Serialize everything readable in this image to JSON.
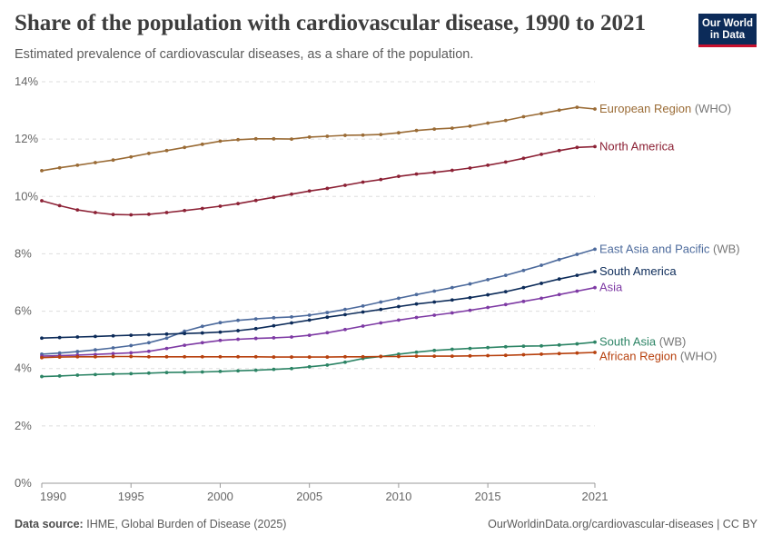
{
  "header": {
    "title": "Share of the population with cardiovascular disease, 1990 to 2021",
    "subtitle": "Estimated prevalence of cardiovascular diseases, as a share of the population.",
    "logo_line1": "Our World",
    "logo_line2": "in Data"
  },
  "footer": {
    "source_label": "Data source:",
    "source_text": "IHME, Global Burden of Disease (2025)",
    "url": "OurWorldinData.org/cardiovascular-diseases | CC BY"
  },
  "chart_data": {
    "type": "line",
    "title": "Share of the population with cardiovascular disease, 1990 to 2021",
    "xlabel": "",
    "ylabel": "",
    "xlim": [
      1990,
      2021
    ],
    "ylim": [
      0,
      14
    ],
    "grid": true,
    "legend": "end-of-line labels",
    "x_ticks": [
      1990,
      1995,
      2000,
      2005,
      2010,
      2015,
      2021
    ],
    "y_ticks": [
      {
        "value": 0,
        "label": "0%"
      },
      {
        "value": 2,
        "label": "2%"
      },
      {
        "value": 4,
        "label": "4%"
      },
      {
        "value": 6,
        "label": "6%"
      },
      {
        "value": 8,
        "label": "8%"
      },
      {
        "value": 10,
        "label": "10%"
      },
      {
        "value": 12,
        "label": "12%"
      },
      {
        "value": 14,
        "label": "14%"
      }
    ],
    "x": [
      1990,
      1991,
      1992,
      1993,
      1994,
      1995,
      1996,
      1997,
      1998,
      1999,
      2000,
      2001,
      2002,
      2003,
      2004,
      2005,
      2006,
      2007,
      2008,
      2009,
      2010,
      2011,
      2012,
      2013,
      2014,
      2015,
      2016,
      2017,
      2018,
      2019,
      2020,
      2021
    ],
    "series": [
      {
        "name": "European Region",
        "name_suffix": " (WHO)",
        "color": "#9a6b35",
        "values": [
          10.9,
          11.0,
          11.09,
          11.18,
          11.27,
          11.38,
          11.5,
          11.6,
          11.71,
          11.82,
          11.93,
          11.98,
          12.01,
          12.01,
          12.0,
          12.07,
          12.1,
          12.13,
          12.14,
          12.16,
          12.22,
          12.3,
          12.35,
          12.38,
          12.45,
          12.56,
          12.65,
          12.78,
          12.89,
          13.01,
          13.11,
          13.05
        ]
      },
      {
        "name": "North America",
        "name_suffix": "",
        "color": "#8c2135",
        "values": [
          9.85,
          9.68,
          9.53,
          9.44,
          9.37,
          9.36,
          9.38,
          9.44,
          9.51,
          9.58,
          9.66,
          9.75,
          9.86,
          9.97,
          10.08,
          10.19,
          10.28,
          10.39,
          10.5,
          10.59,
          10.7,
          10.78,
          10.84,
          10.91,
          10.99,
          11.09,
          11.2,
          11.33,
          11.47,
          11.6,
          11.71,
          11.74
        ]
      },
      {
        "name": "East Asia and Pacific",
        "name_suffix": " (WB)",
        "color": "#4c6a9c",
        "values": [
          4.5,
          4.54,
          4.59,
          4.65,
          4.72,
          4.8,
          4.9,
          5.06,
          5.3,
          5.47,
          5.6,
          5.68,
          5.73,
          5.77,
          5.8,
          5.86,
          5.95,
          6.06,
          6.18,
          6.32,
          6.45,
          6.58,
          6.7,
          6.82,
          6.95,
          7.1,
          7.25,
          7.42,
          7.6,
          7.8,
          7.98,
          8.16
        ]
      },
      {
        "name": "South America",
        "name_suffix": "",
        "color": "#0c2b59",
        "values": [
          5.06,
          5.08,
          5.1,
          5.12,
          5.14,
          5.16,
          5.18,
          5.2,
          5.22,
          5.24,
          5.27,
          5.32,
          5.39,
          5.49,
          5.59,
          5.69,
          5.79,
          5.88,
          5.97,
          6.06,
          6.16,
          6.25,
          6.32,
          6.39,
          6.47,
          6.57,
          6.68,
          6.82,
          6.97,
          7.12,
          7.25,
          7.38
        ]
      },
      {
        "name": "Asia",
        "name_suffix": "",
        "color": "#7e3aa4",
        "values": [
          4.43,
          4.45,
          4.47,
          4.49,
          4.52,
          4.55,
          4.6,
          4.7,
          4.81,
          4.9,
          4.98,
          5.02,
          5.05,
          5.07,
          5.1,
          5.16,
          5.25,
          5.36,
          5.48,
          5.59,
          5.69,
          5.78,
          5.86,
          5.94,
          6.03,
          6.13,
          6.23,
          6.34,
          6.45,
          6.58,
          6.7,
          6.82
        ]
      },
      {
        "name": "South Asia",
        "name_suffix": " (WB)",
        "color": "#2c8465",
        "values": [
          3.72,
          3.74,
          3.77,
          3.79,
          3.81,
          3.82,
          3.84,
          3.86,
          3.87,
          3.88,
          3.9,
          3.92,
          3.94,
          3.97,
          4.0,
          4.06,
          4.12,
          4.22,
          4.35,
          4.42,
          4.5,
          4.57,
          4.63,
          4.67,
          4.7,
          4.73,
          4.76,
          4.78,
          4.79,
          4.82,
          4.86,
          4.92
        ]
      },
      {
        "name": "African Region",
        "name_suffix": " (WHO)",
        "color": "#b7410e",
        "values": [
          4.38,
          4.4,
          4.41,
          4.41,
          4.42,
          4.42,
          4.41,
          4.41,
          4.41,
          4.41,
          4.41,
          4.41,
          4.41,
          4.4,
          4.4,
          4.4,
          4.4,
          4.41,
          4.41,
          4.42,
          4.42,
          4.43,
          4.43,
          4.43,
          4.44,
          4.45,
          4.46,
          4.48,
          4.5,
          4.52,
          4.54,
          4.56
        ]
      }
    ]
  }
}
